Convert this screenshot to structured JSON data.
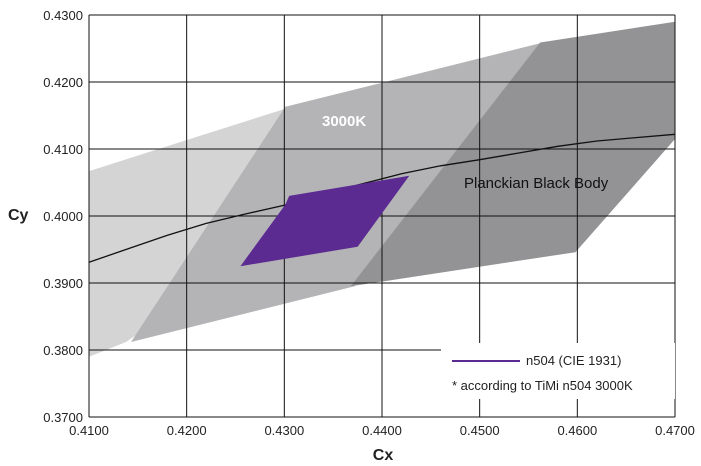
{
  "chart_data": {
    "type": "scatter",
    "xlabel": "Cx",
    "ylabel": "Cy",
    "xlim": [
      0.41,
      0.47
    ],
    "ylim": [
      0.37,
      0.43
    ],
    "x_ticks": [
      "0.4100",
      "0.4200",
      "0.4300",
      "0.4400",
      "0.4500",
      "0.4600",
      "0.4700"
    ],
    "y_ticks": [
      "0.3700",
      "0.3800",
      "0.3900",
      "0.4000",
      "0.4100",
      "0.4200",
      "0.4300"
    ],
    "grid": true,
    "regions": [
      {
        "fill": "#d4d4d4",
        "points": [
          [
            0.41,
            0.379
          ],
          [
            0.41,
            0.4067
          ],
          [
            0.4305,
            0.4162
          ],
          [
            0.4307,
            0.4163
          ],
          [
            0.427,
            0.3947
          ],
          [
            0.4138,
            0.3812
          ]
        ]
      },
      {
        "fill": "#b4b4b6",
        "points": [
          [
            0.4143,
            0.3812
          ],
          [
            0.4301,
            0.4163
          ],
          [
            0.4565,
            0.4259
          ],
          [
            0.4372,
            0.3895
          ]
        ]
      },
      {
        "fill": "#939395",
        "points": [
          [
            0.4368,
            0.3895
          ],
          [
            0.4562,
            0.4259
          ],
          [
            0.47,
            0.429
          ],
          [
            0.47,
            0.4115
          ],
          [
            0.4598,
            0.3946
          ]
        ]
      }
    ],
    "region_label": "3000K",
    "series": [
      {
        "name": "Planckian Black Body",
        "type": "line",
        "color": "#111111",
        "x": [
          0.41,
          0.414,
          0.418,
          0.422,
          0.426,
          0.43,
          0.434,
          0.438,
          0.442,
          0.446,
          0.45,
          0.454,
          0.458,
          0.462,
          0.466,
          0.47
        ],
        "y": [
          0.3931,
          0.3951,
          0.3971,
          0.3989,
          0.4003,
          0.4016,
          0.4033,
          0.4048,
          0.4063,
          0.4075,
          0.4084,
          0.4094,
          0.4104,
          0.4112,
          0.4117,
          0.4122
        ]
      },
      {
        "name": "n504 (CIE 1931)",
        "type": "polygon",
        "color": "#5b2b92",
        "points": [
          [
            0.4255,
            0.3925
          ],
          [
            0.4301,
            0.4017
          ],
          [
            0.4305,
            0.403
          ],
          [
            0.4428,
            0.406
          ],
          [
            0.4375,
            0.3954
          ]
        ]
      }
    ],
    "annotations": [
      "Planckian Black Body"
    ],
    "legend": {
      "position": "bottom-right",
      "entries": [
        "n504 (CIE 1931)",
        "* according to TiMi n504 3000K"
      ]
    }
  }
}
